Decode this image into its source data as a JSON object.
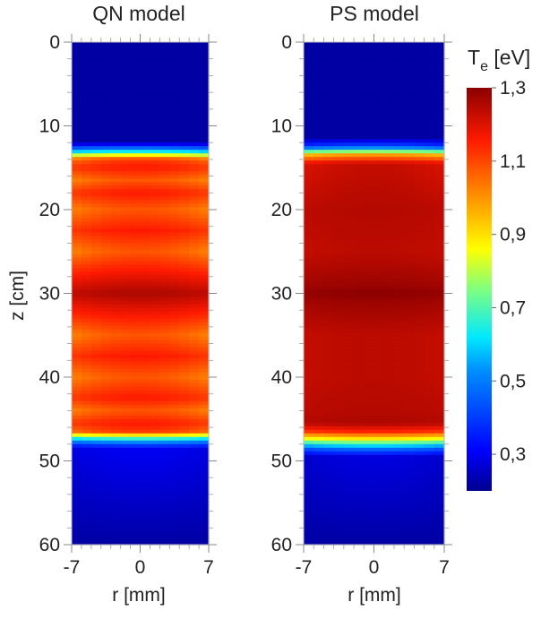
{
  "chart_data": [
    {
      "type": "heatmap",
      "title": "QN model",
      "xlabel": "r [mm]",
      "ylabel": "z [cm]",
      "xlim": [
        -7,
        7
      ],
      "ylim": [
        0,
        60
      ],
      "y_inverted": true,
      "x_ticks": [
        "-7",
        "0",
        "7"
      ],
      "y_ticks": [
        "0",
        "10",
        "20",
        "30",
        "40",
        "50",
        "60"
      ],
      "grid": false,
      "hot_region_z": [
        13.5,
        46.5
      ],
      "edge_value_eV": 0.22,
      "columns_profile": {
        "z": [
          0,
          12,
          13,
          14,
          15,
          16.5,
          18,
          20,
          22.5,
          25,
          27.5,
          30,
          32.5,
          35,
          37.5,
          40,
          42.5,
          44,
          45.5,
          46.5,
          47.5,
          48.5,
          60
        ],
        "Te_center_eV": [
          0.22,
          0.22,
          0.6,
          1.12,
          1.16,
          1.08,
          1.16,
          1.08,
          1.16,
          1.08,
          1.17,
          1.26,
          1.17,
          1.08,
          1.16,
          1.08,
          1.16,
          1.08,
          1.16,
          1.12,
          0.6,
          0.3,
          0.22
        ],
        "Te_edge_eV": [
          0.22,
          0.22,
          0.55,
          1.05,
          1.12,
          1.02,
          1.12,
          1.02,
          1.12,
          1.02,
          1.14,
          1.24,
          1.14,
          1.02,
          1.12,
          1.02,
          1.12,
          1.02,
          1.12,
          1.05,
          0.55,
          0.28,
          0.22
        ]
      }
    },
    {
      "type": "heatmap",
      "title": "PS model",
      "xlabel": "r [mm]",
      "ylabel": "",
      "xlim": [
        -7,
        7
      ],
      "ylim": [
        0,
        60
      ],
      "y_inverted": true,
      "x_ticks": [
        "-7",
        "0",
        "7"
      ],
      "y_ticks": [
        "0",
        "10",
        "20",
        "30",
        "40",
        "50",
        "60"
      ],
      "grid": false,
      "hot_region_z": [
        13.5,
        47
      ],
      "edge_value_eV": 0.22,
      "columns_profile": {
        "z": [
          0,
          11.5,
          12.5,
          13.5,
          14.5,
          20,
          25,
          29,
          30,
          31,
          35,
          40,
          44,
          45.5,
          46.5,
          47.5,
          48.5,
          49.5,
          60
        ],
        "Te_center_eV": [
          0.22,
          0.22,
          0.45,
          1.0,
          1.23,
          1.25,
          1.24,
          1.28,
          1.3,
          1.28,
          1.24,
          1.24,
          1.25,
          1.26,
          1.15,
          0.85,
          0.5,
          0.28,
          0.22
        ],
        "Te_edge_eV": [
          0.22,
          0.22,
          0.4,
          0.95,
          1.2,
          1.24,
          1.23,
          1.27,
          1.29,
          1.27,
          1.23,
          1.23,
          1.24,
          1.25,
          1.12,
          0.8,
          0.45,
          0.26,
          0.22
        ]
      }
    }
  ],
  "colorbar": {
    "title_main": "T",
    "title_sub": "e",
    "title_unit": " [eV]",
    "min": 0.2,
    "max": 1.3,
    "ticks": [
      {
        "value": 1.3,
        "label": "1,3"
      },
      {
        "value": 1.1,
        "label": "1,1"
      },
      {
        "value": 0.9,
        "label": "0,9"
      },
      {
        "value": 0.7,
        "label": "0,7"
      },
      {
        "value": 0.5,
        "label": "0,5"
      },
      {
        "value": 0.3,
        "label": "0,3"
      }
    ],
    "colormap": "jet"
  }
}
